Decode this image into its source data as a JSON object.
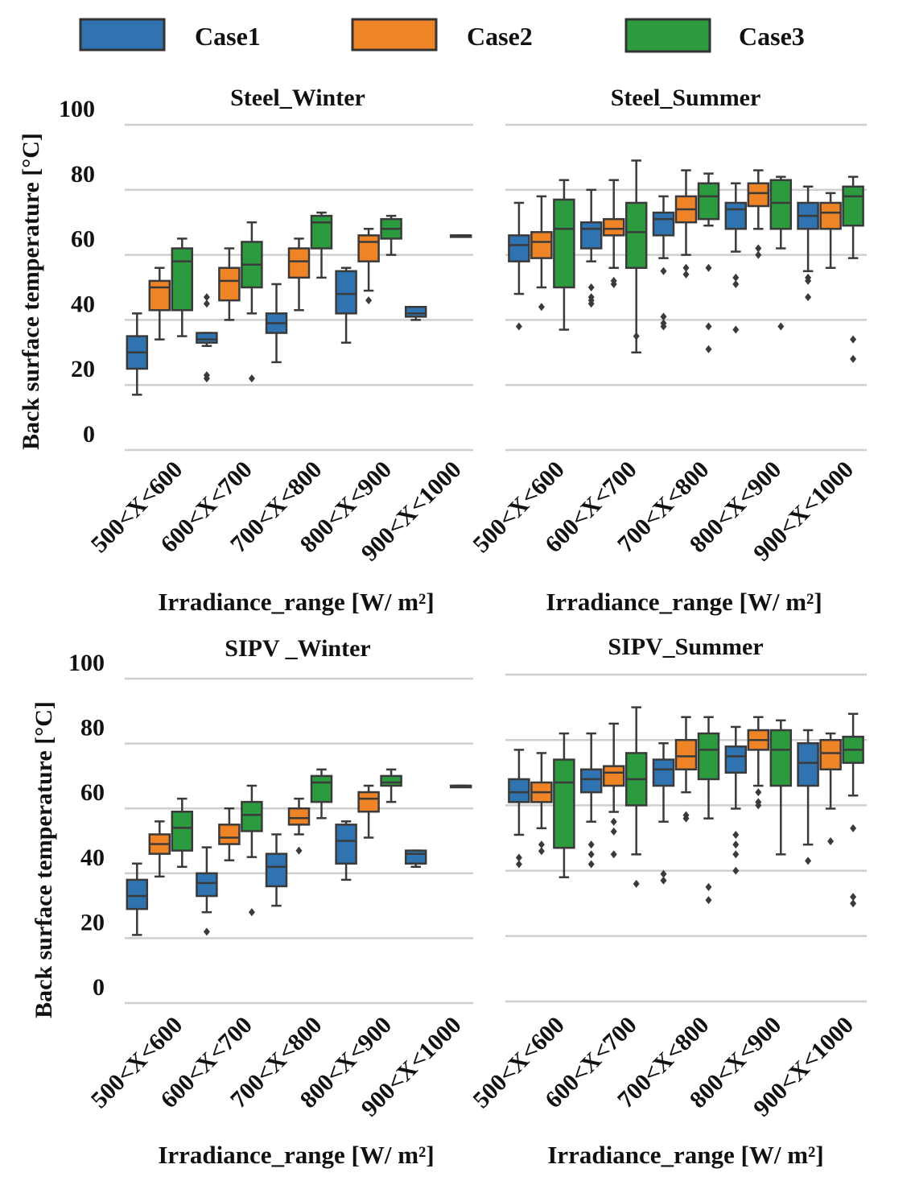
{
  "chart_data": {
    "type": "box",
    "legend": [
      {
        "label": "Case1",
        "color": "#2f74b0"
      },
      {
        "label": "Case2",
        "color": "#ef8427"
      },
      {
        "label": "Case3",
        "color": "#2c9b3f"
      }
    ],
    "ylabel": "Back surface temperature [°C]",
    "xlabel": "Irradiance_range [W/ m²]",
    "yticks": [
      "0",
      "20",
      "40",
      "60",
      "80",
      "100"
    ],
    "ylim": [
      0,
      100
    ],
    "categories": [
      "500<X<600",
      "600<X<700",
      "700<X<800",
      "800<X<900",
      "900<X<1000"
    ],
    "panels": [
      {
        "title": "Steel_Winter",
        "series": [
          {
            "name": "Case1",
            "boxes": [
              {
                "min": 17,
                "q1": 25,
                "median": 30,
                "q3": 35,
                "max": 42,
                "outliers": []
              },
              {
                "min": 32,
                "q1": 33,
                "median": 34,
                "q3": 36,
                "max": 36,
                "outliers": [
                  22,
                  23,
                  45,
                  47
                ]
              },
              {
                "min": 27,
                "q1": 36,
                "median": 39,
                "q3": 42,
                "max": 51,
                "outliers": []
              },
              {
                "min": 33,
                "q1": 42,
                "median": 48,
                "q3": 55,
                "max": 56,
                "outliers": []
              },
              {
                "min": 40,
                "q1": 41,
                "median": 42,
                "q3": 44,
                "max": 44,
                "outliers": []
              }
            ]
          },
          {
            "name": "Case2",
            "boxes": [
              {
                "min": 34,
                "q1": 43,
                "median": 50,
                "q3": 52,
                "max": 56,
                "outliers": []
              },
              {
                "min": 40,
                "q1": 46,
                "median": 52,
                "q3": 56,
                "max": 62,
                "outliers": []
              },
              {
                "min": 43,
                "q1": 53,
                "median": 58,
                "q3": 62,
                "max": 65,
                "outliers": []
              },
              {
                "min": 49,
                "q1": 58,
                "median": 64,
                "q3": 66,
                "max": 68,
                "outliers": [
                  46
                ]
              },
              null
            ]
          },
          {
            "name": "Case3",
            "boxes": [
              {
                "min": 35,
                "q1": 43,
                "median": 58,
                "q3": 62,
                "max": 65,
                "outliers": []
              },
              {
                "min": 42,
                "q1": 50,
                "median": 57,
                "q3": 64,
                "max": 70,
                "outliers": [
                  22
                ]
              },
              {
                "min": 53,
                "q1": 62,
                "median": 70,
                "q3": 72,
                "max": 73,
                "outliers": []
              },
              {
                "min": 60,
                "q1": 65,
                "median": 68,
                "q3": 71,
                "max": 72,
                "outliers": []
              },
              {
                "min": 66,
                "q1": 66,
                "median": 66,
                "q3": 66,
                "max": 66,
                "outliers": []
              }
            ]
          }
        ]
      },
      {
        "title": "Steel_Summer",
        "series": [
          {
            "name": "Case1",
            "boxes": [
              {
                "min": 48,
                "q1": 58,
                "median": 63,
                "q3": 66,
                "max": 76,
                "outliers": [
                  38
                ]
              },
              {
                "min": 58,
                "q1": 62,
                "median": 68,
                "q3": 70,
                "max": 80,
                "outliers": [
                  45,
                  46,
                  47,
                  50
                ]
              },
              {
                "min": 59,
                "q1": 66,
                "median": 71,
                "q3": 73,
                "max": 78,
                "outliers": [
                  38,
                  39,
                  41,
                  55
                ]
              },
              {
                "min": 61,
                "q1": 68,
                "median": 74,
                "q3": 76,
                "max": 82,
                "outliers": [
                  37,
                  51,
                  53
                ]
              },
              {
                "min": 55,
                "q1": 68,
                "median": 72,
                "q3": 76,
                "max": 81,
                "outliers": [
                  47,
                  52,
                  53
                ]
              }
            ]
          },
          {
            "name": "Case2",
            "boxes": [
              {
                "min": 50,
                "q1": 59,
                "median": 64,
                "q3": 67,
                "max": 78,
                "outliers": [
                  44
                ]
              },
              {
                "min": 56,
                "q1": 66,
                "median": 68,
                "q3": 71,
                "max": 83,
                "outliers": [
                  51,
                  52
                ]
              },
              {
                "min": 60,
                "q1": 70,
                "median": 74,
                "q3": 78,
                "max": 86,
                "outliers": [
                  54,
                  56
                ]
              },
              {
                "min": 68,
                "q1": 75,
                "median": 79,
                "q3": 82,
                "max": 86,
                "outliers": [
                  60,
                  62
                ]
              },
              {
                "min": 56,
                "q1": 68,
                "median": 73,
                "q3": 76,
                "max": 79,
                "outliers": []
              }
            ]
          },
          {
            "name": "Case3",
            "boxes": [
              {
                "min": 37,
                "q1": 50,
                "median": 68,
                "q3": 77,
                "max": 83,
                "outliers": []
              },
              {
                "min": 30,
                "q1": 56,
                "median": 67,
                "q3": 76,
                "max": 89,
                "outliers": [
                  35
                ]
              },
              {
                "min": 69,
                "q1": 71,
                "median": 78,
                "q3": 82,
                "max": 85,
                "outliers": [
                  31,
                  38,
                  56
                ]
              },
              {
                "min": 62,
                "q1": 68,
                "median": 76,
                "q3": 83,
                "max": 84,
                "outliers": [
                  38
                ]
              },
              {
                "min": 59,
                "q1": 69,
                "median": 78,
                "q3": 81,
                "max": 84,
                "outliers": [
                  28,
                  34
                ]
              }
            ]
          }
        ]
      },
      {
        "title": "SIPV _Winter",
        "series": [
          {
            "name": "Case1",
            "boxes": [
              {
                "min": 21,
                "q1": 29,
                "median": 33,
                "q3": 38,
                "max": 43,
                "outliers": []
              },
              {
                "min": 28,
                "q1": 33,
                "median": 37,
                "q3": 40,
                "max": 48,
                "outliers": [
                  22
                ]
              },
              {
                "min": 30,
                "q1": 36,
                "median": 42,
                "q3": 46,
                "max": 52,
                "outliers": []
              },
              {
                "min": 38,
                "q1": 43,
                "median": 50,
                "q3": 55,
                "max": 56,
                "outliers": []
              },
              {
                "min": 42,
                "q1": 43,
                "median": 46,
                "q3": 47,
                "max": 47,
                "outliers": []
              }
            ]
          },
          {
            "name": "Case2",
            "boxes": [
              {
                "min": 39,
                "q1": 46,
                "median": 49,
                "q3": 52,
                "max": 56,
                "outliers": []
              },
              {
                "min": 44,
                "q1": 49,
                "median": 51,
                "q3": 55,
                "max": 60,
                "outliers": []
              },
              {
                "min": 52,
                "q1": 55,
                "median": 57,
                "q3": 60,
                "max": 63,
                "outliers": [
                  47
                ]
              },
              {
                "min": 51,
                "q1": 59,
                "median": 63,
                "q3": 65,
                "max": 67,
                "outliers": []
              },
              null
            ]
          },
          {
            "name": "Case3",
            "boxes": [
              {
                "min": 42,
                "q1": 47,
                "median": 54,
                "q3": 59,
                "max": 63,
                "outliers": []
              },
              {
                "min": 45,
                "q1": 53,
                "median": 58,
                "q3": 62,
                "max": 67,
                "outliers": [
                  28
                ]
              },
              {
                "min": 57,
                "q1": 62,
                "median": 68,
                "q3": 70,
                "max": 72,
                "outliers": []
              },
              {
                "min": 62,
                "q1": 67,
                "median": 68,
                "q3": 70,
                "max": 72,
                "outliers": []
              },
              {
                "min": 67,
                "q1": 67,
                "median": 67,
                "q3": 67,
                "max": 67,
                "outliers": []
              }
            ]
          }
        ]
      },
      {
        "title": "SIPV_Summer",
        "series": [
          {
            "name": "Case1",
            "boxes": [
              {
                "min": 51,
                "q1": 61,
                "median": 64,
                "q3": 68,
                "max": 77,
                "outliers": [
                  42,
                  44
                ]
              },
              {
                "min": 55,
                "q1": 64,
                "median": 68,
                "q3": 71,
                "max": 82,
                "outliers": [
                  42,
                  45,
                  48
                ]
              },
              {
                "min": 55,
                "q1": 66,
                "median": 71,
                "q3": 74,
                "max": 79,
                "outliers": [
                  37,
                  39
                ]
              },
              {
                "min": 59,
                "q1": 70,
                "median": 75,
                "q3": 78,
                "max": 84,
                "outliers": [
                  40,
                  45,
                  48,
                  51
                ]
              },
              {
                "min": 48,
                "q1": 66,
                "median": 73,
                "q3": 79,
                "max": 83,
                "outliers": [
                  43
                ]
              }
            ]
          },
          {
            "name": "Case2",
            "boxes": [
              {
                "min": 53,
                "q1": 61,
                "median": 64,
                "q3": 67,
                "max": 76,
                "outliers": [
                  46,
                  48
                ]
              },
              {
                "min": 58,
                "q1": 66,
                "median": 70,
                "q3": 72,
                "max": 85,
                "outliers": [
                  45,
                  52,
                  55
                ]
              },
              {
                "min": 64,
                "q1": 71,
                "median": 75,
                "q3": 80,
                "max": 87,
                "outliers": [
                  56,
                  57
                ]
              },
              {
                "min": 66,
                "q1": 77,
                "median": 80,
                "q3": 83,
                "max": 87,
                "outliers": [
                  60,
                  61,
                  64
                ]
              },
              {
                "min": 59,
                "q1": 71,
                "median": 76,
                "q3": 80,
                "max": 82,
                "outliers": [
                  49
                ]
              }
            ]
          },
          {
            "name": "Case3",
            "boxes": [
              {
                "min": 38,
                "q1": 47,
                "median": 67,
                "q3": 74,
                "max": 82,
                "outliers": []
              },
              {
                "min": 45,
                "q1": 60,
                "median": 68,
                "q3": 76,
                "max": 90,
                "outliers": [
                  36
                ]
              },
              {
                "min": 56,
                "q1": 68,
                "median": 77,
                "q3": 82,
                "max": 87,
                "outliers": [
                  31,
                  35
                ]
              },
              {
                "min": 45,
                "q1": 66,
                "median": 77,
                "q3": 83,
                "max": 86,
                "outliers": []
              },
              {
                "min": 63,
                "q1": 73,
                "median": 77,
                "q3": 81,
                "max": 88,
                "outliers": [
                  30,
                  32,
                  53
                ]
              }
            ]
          }
        ]
      }
    ]
  }
}
